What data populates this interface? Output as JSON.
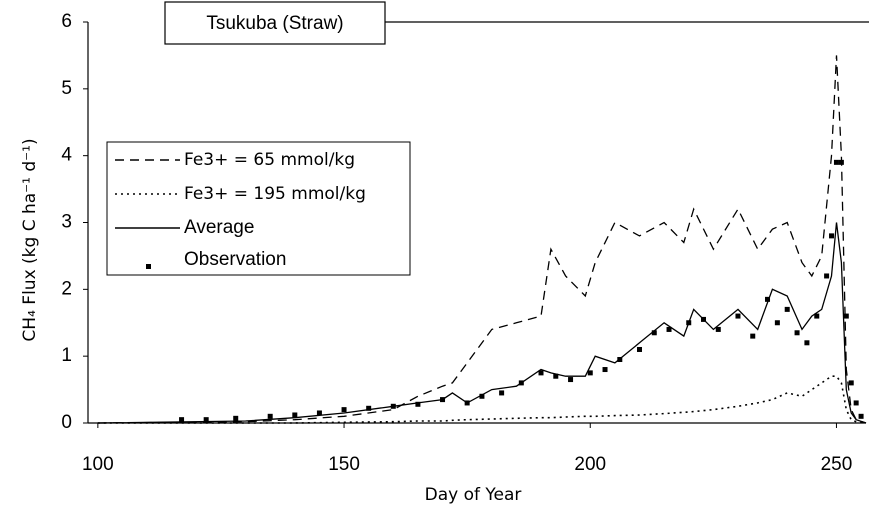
{
  "chart_data": {
    "type": "line",
    "title": "Tsukuba (Straw)",
    "x_label": "Day of Year",
    "y_label": "CH₄ Flux (kg C ha⁻¹ d⁻¹)",
    "xlim": [
      98,
      256
    ],
    "xticks": [
      100,
      150,
      200,
      250
    ],
    "ylim": [
      0,
      6
    ],
    "yticks": [
      0,
      1,
      2,
      3,
      4,
      5,
      6
    ],
    "x": [
      100,
      130,
      140,
      150,
      160,
      165,
      170,
      172,
      175,
      180,
      185,
      190,
      192,
      195,
      199,
      201,
      205,
      210,
      215,
      219,
      221,
      225,
      230,
      234,
      237,
      240,
      243,
      245,
      247,
      249,
      250,
      251,
      252,
      253,
      254,
      256
    ],
    "series": [
      {
        "name": "Fe3+ = 65 mmol/kg",
        "color": "#000000",
        "style": "dashed",
        "values": [
          0,
          0.02,
          0.05,
          0.1,
          0.2,
          0.4,
          0.55,
          0.6,
          0.9,
          1.4,
          1.5,
          1.6,
          2.6,
          2.2,
          1.9,
          2.4,
          3.0,
          2.8,
          3.0,
          2.7,
          3.2,
          2.6,
          3.2,
          2.6,
          2.9,
          3.0,
          2.4,
          2.2,
          2.5,
          4.0,
          5.5,
          4.0,
          0.8,
          0.2,
          0.05,
          0
        ]
      },
      {
        "name": "Fe3+ = 195 mmol/kg",
        "color": "#000000",
        "style": "dotted",
        "values": [
          0,
          0,
          0,
          0.01,
          0.02,
          0.03,
          0.03,
          0.04,
          0.05,
          0.06,
          0.07,
          0.08,
          0.08,
          0.09,
          0.1,
          0.1,
          0.11,
          0.12,
          0.14,
          0.16,
          0.17,
          0.2,
          0.25,
          0.3,
          0.35,
          0.45,
          0.4,
          0.5,
          0.6,
          0.7,
          0.7,
          0.6,
          0.2,
          0.05,
          0.02,
          0
        ]
      },
      {
        "name": "Average",
        "color": "#000000",
        "style": "solid",
        "values": [
          0,
          0.03,
          0.08,
          0.15,
          0.25,
          0.3,
          0.35,
          0.45,
          0.3,
          0.5,
          0.55,
          0.8,
          0.75,
          0.7,
          0.7,
          1.0,
          0.9,
          1.2,
          1.5,
          1.3,
          1.7,
          1.4,
          1.7,
          1.4,
          2.0,
          1.9,
          1.4,
          1.6,
          1.7,
          2.2,
          3.0,
          2.4,
          0.5,
          0.15,
          0.05,
          0
        ]
      },
      {
        "name": "Observation",
        "color": "#000000",
        "style": "points",
        "x": [
          117,
          122,
          128,
          135,
          140,
          145,
          150,
          155,
          160,
          165,
          170,
          175,
          178,
          182,
          186,
          190,
          193,
          196,
          200,
          203,
          206,
          210,
          213,
          216,
          220,
          223,
          226,
          230,
          233,
          236,
          238,
          240,
          242,
          244,
          246,
          248,
          249,
          250,
          251,
          252,
          253,
          254,
          255
        ],
        "values": [
          0.05,
          0.05,
          0.07,
          0.1,
          0.12,
          0.15,
          0.2,
          0.22,
          0.25,
          0.28,
          0.35,
          0.3,
          0.4,
          0.45,
          0.6,
          0.75,
          0.7,
          0.65,
          0.75,
          0.8,
          0.95,
          1.1,
          1.35,
          1.4,
          1.5,
          1.55,
          1.4,
          1.6,
          1.3,
          1.85,
          1.5,
          1.7,
          1.35,
          1.2,
          1.6,
          2.2,
          2.8,
          3.9,
          3.9,
          1.6,
          0.6,
          0.3,
          0.1
        ]
      }
    ]
  }
}
